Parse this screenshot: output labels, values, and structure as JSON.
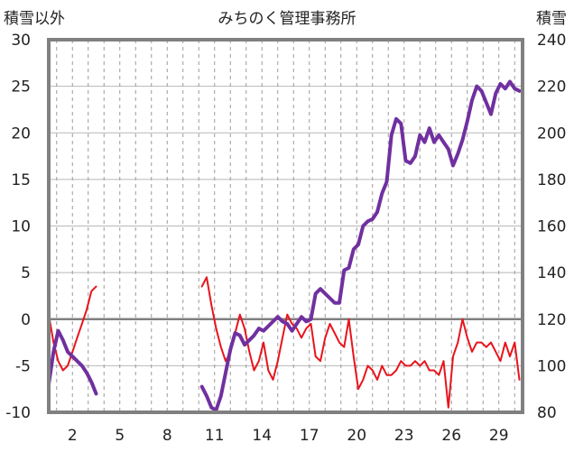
{
  "chart_data": {
    "type": "line",
    "title": "みちのく管理事務所",
    "ylabel_left": "積雪以外",
    "ylabel_right": "積雪",
    "x_ticks": [
      "2",
      "5",
      "8",
      "11",
      "14",
      "17",
      "20",
      "23",
      "26",
      "29"
    ],
    "x_tick_days": [
      2,
      5,
      8,
      11,
      14,
      17,
      20,
      23,
      26,
      29
    ],
    "xlim": [
      0.5,
      30.5
    ],
    "ylim_left": [
      -10,
      30
    ],
    "ylim_right": [
      80,
      240
    ],
    "y_ticks_left": [
      "-10",
      "-5",
      "0",
      "5",
      "10",
      "15",
      "20",
      "25",
      "30"
    ],
    "y_ticks_right": [
      "80",
      "100",
      "120",
      "140",
      "160",
      "180",
      "200",
      "220",
      "240"
    ],
    "grid": {
      "horizontal": "solid",
      "vertical": "dashed"
    },
    "series": [
      {
        "axis": "left",
        "color": "#e8141c",
        "segments": [
          {
            "x": [
              0.5,
              0.8,
              1.1,
              1.4,
              1.7,
              2.0,
              2.3,
              2.6,
              2.9,
              3.2,
              3.5
            ],
            "y": [
              0.5,
              -2.5,
              -4.5,
              -5.5,
              -5.0,
              -3.5,
              -2.0,
              -0.5,
              1.0,
              3.0,
              3.5
            ]
          },
          {
            "x": [
              10.2,
              10.5,
              10.8,
              11.1,
              11.4,
              11.7,
              12.0,
              12.3,
              12.6,
              12.9,
              13.2,
              13.5,
              13.8,
              14.1,
              14.4,
              14.7,
              15.0,
              15.3,
              15.6,
              15.9,
              16.2,
              16.5,
              16.8,
              17.1,
              17.4,
              17.7,
              18.0,
              18.3,
              18.6,
              18.9,
              19.2,
              19.5,
              19.8,
              20.1,
              20.4,
              20.7,
              21.0,
              21.3,
              21.6,
              21.9,
              22.2,
              22.5,
              22.8,
              23.1,
              23.4,
              23.7,
              24.0,
              24.3,
              24.6,
              24.9,
              25.2,
              25.5,
              25.8,
              26.1,
              26.4,
              26.7,
              27.0,
              27.3,
              27.6,
              27.9,
              28.2,
              28.5,
              28.8,
              29.1,
              29.4,
              29.7,
              30.0,
              30.3
            ],
            "y": [
              3.5,
              4.5,
              1.5,
              -1.0,
              -3.0,
              -4.5,
              -3.5,
              -1.5,
              0.5,
              -1.0,
              -3.5,
              -5.5,
              -4.5,
              -2.5,
              -5.5,
              -6.5,
              -4.5,
              -2.0,
              0.5,
              -0.5,
              -1.0,
              -2.0,
              -1.0,
              -0.5,
              -4.0,
              -4.5,
              -2.0,
              -0.5,
              -1.5,
              -2.5,
              -3.0,
              0.0,
              -4.0,
              -7.5,
              -6.5,
              -5.0,
              -5.5,
              -6.5,
              -5.0,
              -6.0,
              -6.0,
              -5.5,
              -4.5,
              -5.0,
              -5.0,
              -4.5,
              -5.0,
              -4.5,
              -5.5,
              -5.5,
              -6.0,
              -4.5,
              -9.5,
              -4.0,
              -2.5,
              0.0,
              -2.0,
              -3.5,
              -2.5,
              -2.5,
              -3.0,
              -2.5,
              -3.5,
              -4.5,
              -2.5,
              -4.0,
              -2.5,
              -6.5
            ]
          }
        ]
      },
      {
        "axis": "right",
        "color": "#7030a0",
        "segments": [
          {
            "x": [
              0.5,
              0.8,
              1.1,
              1.4,
              1.7,
              2.0,
              2.3,
              2.6,
              2.9,
              3.2,
              3.5
            ],
            "y": [
              92,
              106,
              115,
              111,
              106,
              104,
              102,
              100,
              97,
              93,
              88
            ]
          },
          {
            "x": [
              10.2,
              10.5,
              10.8,
              11.1,
              11.4,
              11.7,
              12.0,
              12.3,
              12.6,
              12.9,
              13.2,
              13.5,
              13.8,
              14.1,
              14.4,
              14.7,
              15.0,
              15.3,
              15.6,
              15.9,
              16.2,
              16.5,
              16.8,
              17.1,
              17.4,
              17.7,
              18.0,
              18.3,
              18.6,
              18.9,
              19.2,
              19.5,
              19.8,
              20.1,
              20.4,
              20.7,
              21.0,
              21.3,
              21.6,
              21.9,
              22.2,
              22.5,
              22.8,
              23.1,
              23.4,
              23.7,
              24.0,
              24.3,
              24.6,
              24.9,
              25.2,
              25.5,
              25.8,
              26.1,
              26.4,
              26.7,
              27.0,
              27.3,
              27.6,
              27.9,
              28.2,
              28.5,
              28.8,
              29.1,
              29.4,
              29.7,
              30.0,
              30.3
            ],
            "y": [
              91,
              87,
              82,
              81,
              87,
              97,
              107,
              114,
              113,
              109,
              111,
              113,
              116,
              115,
              117,
              119,
              121,
              119,
              118,
              115,
              118,
              121,
              119,
              120,
              131,
              133,
              131,
              129,
              127,
              127,
              141,
              142,
              150,
              152,
              160,
              162,
              163,
              166,
              174,
              179,
              199,
              206,
              204,
              188,
              187,
              190,
              199,
              196,
              202,
              196,
              199,
              196,
              193,
              186,
              191,
              197,
              205,
              214,
              220,
              218,
              213,
              208,
              217,
              221,
              219,
              222,
              219,
              218
            ]
          }
        ]
      }
    ]
  }
}
